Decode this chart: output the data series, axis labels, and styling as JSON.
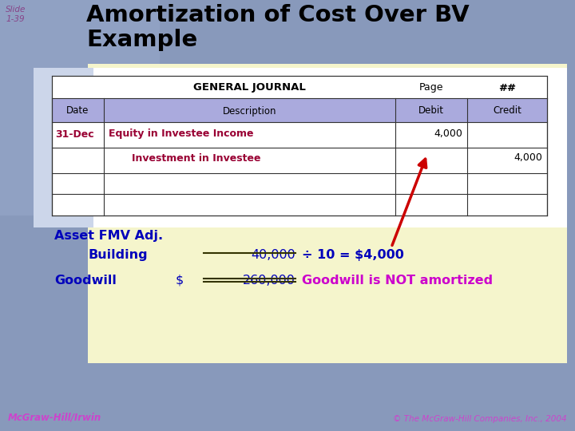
{
  "title": "Amortization of Cost Over BV\nExample",
  "slide_label": "Slide\n1-39",
  "bg_color": "#8899bb",
  "content_bg": "#f5f5cc",
  "white_panel_bg": "#ffffff",
  "header_fill": "#aaaadd",
  "title_color": "#000000",
  "slide_label_color": "#884488",
  "footer_left": "McGraw-Hill/Irwin",
  "footer_right": "© The McGraw-Hill Companies, Inc., 2004",
  "footer_color": "#cc44cc",
  "journal_title": "GENERAL JOURNAL",
  "page_label": "Page",
  "page_value": "##",
  "col_headers": [
    "Date",
    "Description",
    "Debit",
    "Credit"
  ],
  "row1": [
    "31-Dec",
    "Equity in Investee Income",
    "4,000",
    ""
  ],
  "row2": [
    "",
    "Investment in Investee",
    "",
    "4,000"
  ],
  "row_text_color": "#990033",
  "debit_credit_color": "#000000",
  "asset_label": "Asset FMV Adj.",
  "building_label": "Building",
  "building_value": "40,000",
  "building_formula": "÷ 10 = $4,000",
  "goodwill_label": "Goodwill",
  "goodwill_dollar": "$",
  "goodwill_value": "260,000",
  "goodwill_note": "Goodwill is NOT amortized",
  "asset_color": "#0000bb",
  "goodwill_note_color": "#cc00cc",
  "arrow_color": "#cc0000",
  "underline_color": "#333300"
}
